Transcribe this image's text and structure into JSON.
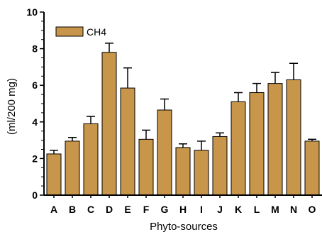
{
  "chart_data": {
    "type": "bar",
    "title": "",
    "xlabel": "Phyto-sources",
    "ylabel": "(ml/200 mg)",
    "ylim": [
      0,
      10
    ],
    "yticks": [
      0,
      2,
      4,
      6,
      8,
      10
    ],
    "grid": false,
    "legend_position": "top-left",
    "bar_color": "#C8964B",
    "bar_edge_color": "#000000",
    "categories": [
      "A",
      "B",
      "C",
      "D",
      "E",
      "F",
      "G",
      "H",
      "I",
      "J",
      "K",
      "L",
      "M",
      "N",
      "O"
    ],
    "series": [
      {
        "name": "CH4",
        "values": [
          2.25,
          2.95,
          3.9,
          7.8,
          5.85,
          3.05,
          4.65,
          2.6,
          2.45,
          3.2,
          5.1,
          5.6,
          6.1,
          6.3,
          2.95
        ],
        "error_upper": [
          0.2,
          0.2,
          0.4,
          0.5,
          1.1,
          0.5,
          0.6,
          0.2,
          0.5,
          0.2,
          0.5,
          0.5,
          0.6,
          0.9,
          0.1
        ]
      }
    ]
  }
}
